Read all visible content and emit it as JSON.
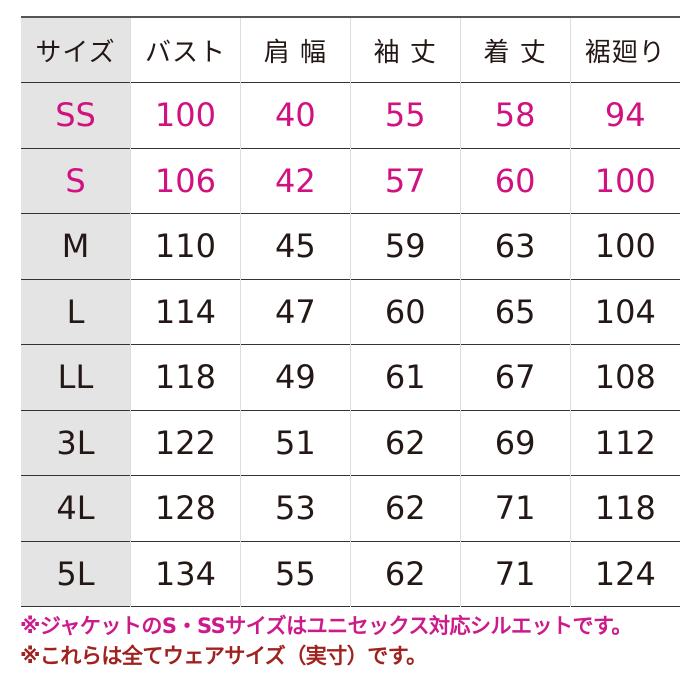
{
  "table": {
    "headers": [
      "サイズ",
      "バスト",
      "肩 幅",
      "袖 丈",
      "着 丈",
      "裾廻り"
    ],
    "rows": [
      {
        "size": "SS",
        "values": [
          "100",
          "40",
          "55",
          "58",
          "94"
        ],
        "highlight": true
      },
      {
        "size": "S",
        "values": [
          "106",
          "42",
          "57",
          "60",
          "100"
        ],
        "highlight": true
      },
      {
        "size": "M",
        "values": [
          "110",
          "45",
          "59",
          "63",
          "100"
        ],
        "highlight": false
      },
      {
        "size": "L",
        "values": [
          "114",
          "47",
          "60",
          "65",
          "104"
        ],
        "highlight": false
      },
      {
        "size": "LL",
        "values": [
          "118",
          "49",
          "61",
          "67",
          "108"
        ],
        "highlight": false
      },
      {
        "size": "3L",
        "values": [
          "122",
          "51",
          "62",
          "69",
          "112"
        ],
        "highlight": false
      },
      {
        "size": "4L",
        "values": [
          "128",
          "53",
          "62",
          "71",
          "118"
        ],
        "highlight": false
      },
      {
        "size": "5L",
        "values": [
          "134",
          "55",
          "62",
          "71",
          "124"
        ],
        "highlight": false
      }
    ]
  },
  "notes": [
    "※ジャケットのS・SSサイズはユニセックス対応シルエットです。",
    "※これらは全てウェアサイズ（実寸）です。"
  ],
  "colors": {
    "highlight": "#d0117f",
    "note1": "#cc1a8a",
    "note2": "#a0221f",
    "size_column_bg": "#e4e4e5"
  }
}
